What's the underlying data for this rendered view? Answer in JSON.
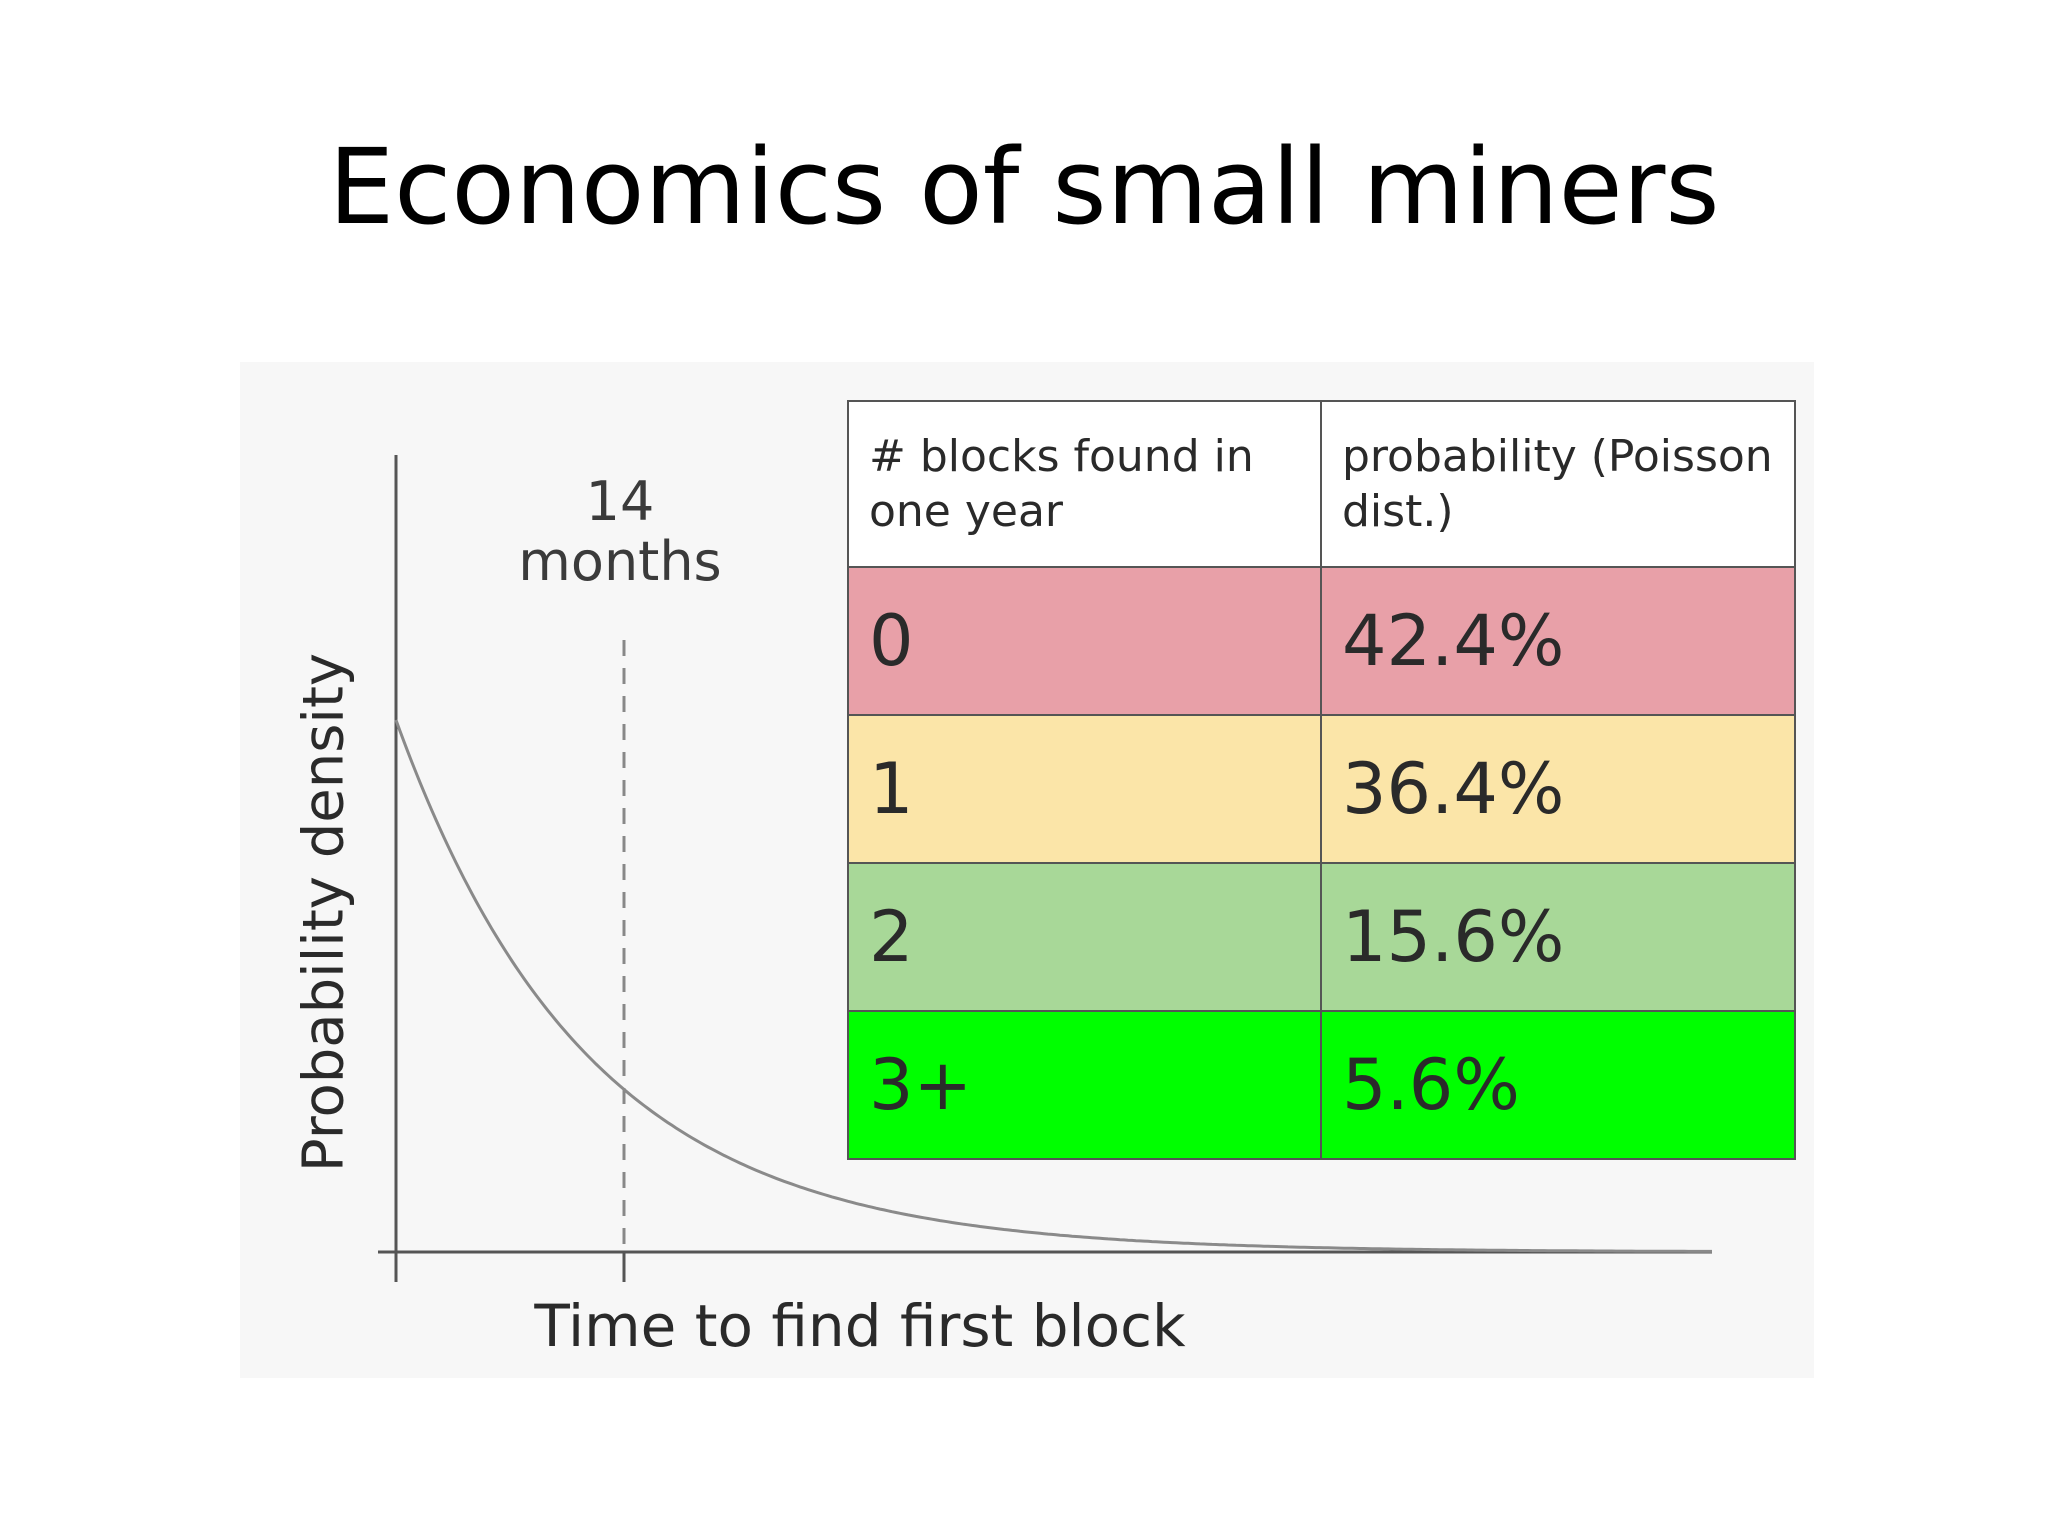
{
  "slide": {
    "title": "Economics of small miners"
  },
  "diagram": {
    "y_axis_label": "Probability density",
    "x_axis_label": "Time to find first block",
    "marker_value": "14",
    "marker_unit": "months"
  },
  "table": {
    "headers": [
      "# blocks found in one year",
      "probability (Poisson dist.)"
    ],
    "rows": [
      {
        "blocks": "0",
        "probability": "42.4%",
        "color": "#e8a0a8"
      },
      {
        "blocks": "1",
        "probability": "36.4%",
        "color": "#fbe5a8"
      },
      {
        "blocks": "2",
        "probability": "15.6%",
        "color": "#a8d898"
      },
      {
        "blocks": "3+",
        "probability": "5.6%",
        "color": "#00ff00"
      }
    ]
  }
}
